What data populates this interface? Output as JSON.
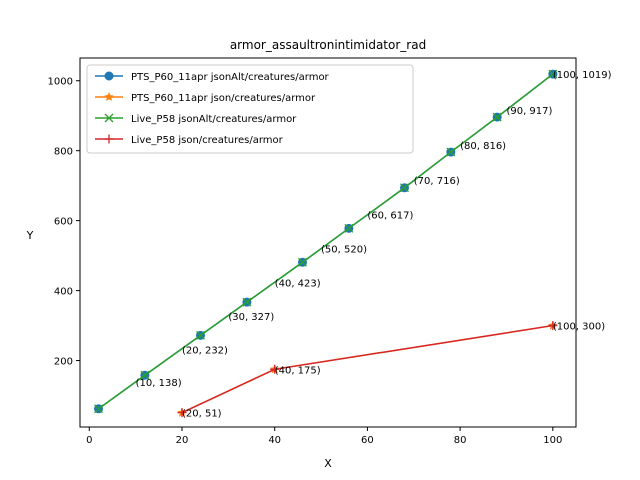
{
  "chart_data": {
    "type": "line",
    "title": "armor_assaultronintimidator_rad",
    "xlabel": "X",
    "ylabel": "Y",
    "xlim": [
      -2,
      105
    ],
    "ylim": [
      10,
      1065
    ],
    "x_ticks": [
      0,
      20,
      40,
      60,
      80,
      100
    ],
    "y_ticks": [
      200,
      400,
      600,
      800,
      1000
    ],
    "legend_position": "top-left",
    "series": [
      {
        "name": "PTS_P60_11apr jsonAlt/creatures/armor",
        "color": "#1f77b4",
        "marker": "circle",
        "x": [
          2,
          12,
          24,
          34,
          46,
          56,
          68,
          78,
          88,
          100
        ],
        "y": [
          62,
          158,
          272,
          367,
          481,
          578,
          694,
          796,
          896,
          1019
        ]
      },
      {
        "name": "PTS_P60_11apr json/creatures/armor",
        "color": "#ff7f0e",
        "marker": "star",
        "x": [
          20,
          40,
          100
        ],
        "y": [
          51,
          175,
          300
        ]
      },
      {
        "name": "Live_P58 jsonAlt/creatures/armor",
        "color": "#2ca02c",
        "marker": "x",
        "x": [
          2,
          12,
          24,
          34,
          46,
          56,
          68,
          78,
          88,
          100
        ],
        "y": [
          62,
          158,
          272,
          367,
          481,
          578,
          694,
          796,
          896,
          1019
        ]
      },
      {
        "name": "Live_P58 json/creatures/armor",
        "color": "#d62728",
        "marker": "plus",
        "x": [
          20,
          40,
          100
        ],
        "y": [
          51,
          175,
          300
        ]
      }
    ],
    "annotations": [
      {
        "text": "(10, 138)",
        "x": 10,
        "y": 138
      },
      {
        "text": "(20, 232)",
        "x": 20,
        "y": 232
      },
      {
        "text": "(30, 327)",
        "x": 30,
        "y": 327
      },
      {
        "text": "(40, 423)",
        "x": 40,
        "y": 423
      },
      {
        "text": "(50, 520)",
        "x": 50,
        "y": 520
      },
      {
        "text": "(60, 617)",
        "x": 60,
        "y": 617
      },
      {
        "text": "(70, 716)",
        "x": 70,
        "y": 716
      },
      {
        "text": "(80, 816)",
        "x": 80,
        "y": 816
      },
      {
        "text": "(90, 917)",
        "x": 90,
        "y": 917
      },
      {
        "text": "(100, 1019)",
        "x": 100,
        "y": 1019
      },
      {
        "text": "(20, 51)",
        "x": 20,
        "y": 51
      },
      {
        "text": "(40, 175)",
        "x": 40,
        "y": 175
      },
      {
        "text": "(100, 300)",
        "x": 100,
        "y": 300
      }
    ]
  }
}
